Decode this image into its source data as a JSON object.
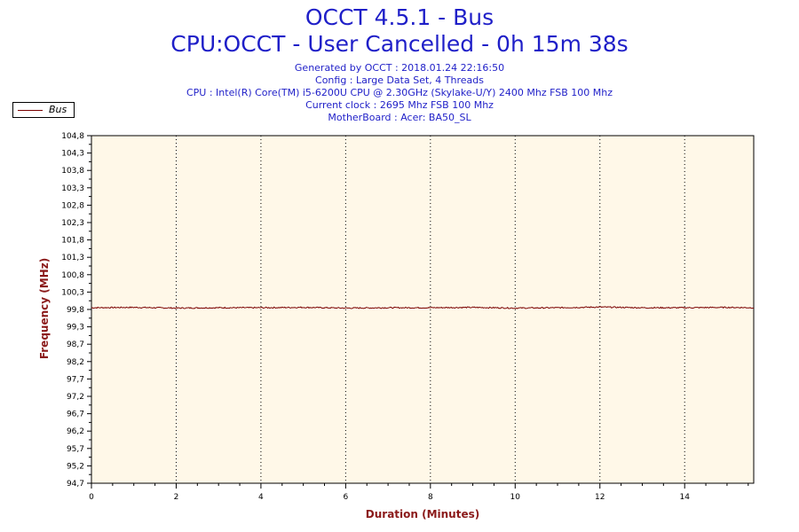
{
  "header": {
    "title": "OCCT 4.5.1 - Bus",
    "subtitle": "CPU:OCCT - User Cancelled - 0h 15m 38s",
    "info_lines": [
      "Generated by OCCT : 2018.01.24 22:16:50",
      "Config : Large Data Set, 4 Threads",
      "CPU : Intel(R) Core(TM) i5-6200U CPU @ 2.30GHz (Skylake-U/Y) 2400 Mhz FSB 100 Mhz",
      "Current clock : 2695 Mhz FSB 100 Mhz",
      "MotherBoard : Acer: BA50_SL"
    ]
  },
  "legend": {
    "label": "Bus"
  },
  "colors": {
    "series": "#7a0000",
    "plot_bg": "#fff8e8",
    "axis_title": "#8b1a1a",
    "header": "#1f1fc8"
  },
  "chart_data": {
    "type": "line",
    "xlabel": "Duration (Minutes)",
    "ylabel": "Frequency (MHz)",
    "xlim": [
      0,
      15.63
    ],
    "ylim": [
      94.7,
      104.8
    ],
    "x_ticks": [
      "0",
      "2",
      "4",
      "6",
      "8",
      "10",
      "12",
      "14"
    ],
    "y_ticks": [
      "94,7",
      "95,2",
      "95,7",
      "96,2",
      "96,7",
      "97,2",
      "97,7",
      "98,2",
      "98,7",
      "99,3",
      "99,8",
      "100,3",
      "100,8",
      "101,3",
      "101,8",
      "102,3",
      "102,8",
      "103,3",
      "103,8",
      "104,3",
      "104,8"
    ],
    "grid": "vertical-dotted",
    "legend_position": "top-left",
    "series": [
      {
        "name": "Bus",
        "x": [
          0,
          1,
          2,
          3,
          4,
          5,
          6,
          7,
          8,
          9,
          10,
          11,
          12,
          13,
          14,
          15,
          15.63
        ],
        "y": [
          99.8,
          99.81,
          99.79,
          99.8,
          99.8,
          99.81,
          99.79,
          99.8,
          99.8,
          99.81,
          99.79,
          99.8,
          99.82,
          99.8,
          99.8,
          99.81,
          99.8
        ]
      }
    ]
  }
}
